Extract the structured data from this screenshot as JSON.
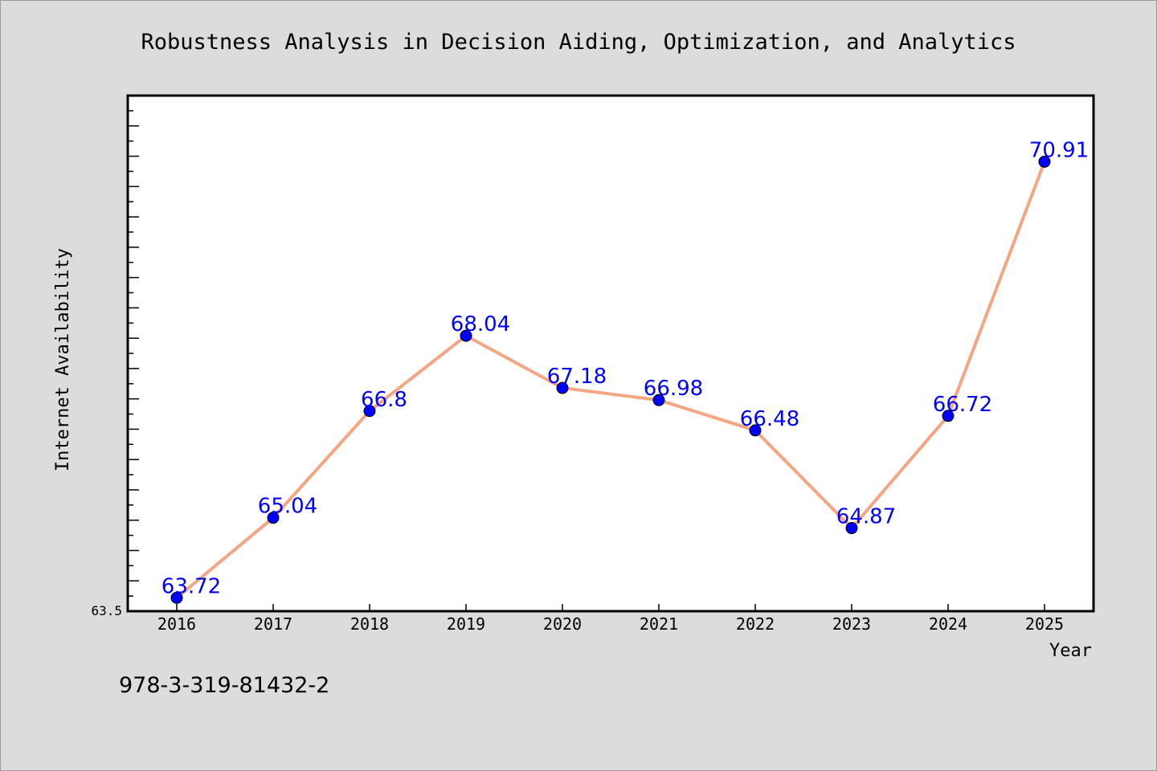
{
  "chart_data": {
    "type": "line",
    "title": "Robustness Analysis in Decision Aiding, Optimization, and Analytics",
    "xlabel": "Year",
    "ylabel": "Internet Availability",
    "categories": [
      "2016",
      "2017",
      "2018",
      "2019",
      "2020",
      "2021",
      "2022",
      "2023",
      "2024",
      "2025"
    ],
    "series": [
      {
        "values": [
          63.72,
          65.04,
          66.8,
          68.04,
          67.18,
          66.98,
          66.48,
          64.87,
          66.72,
          70.91
        ],
        "labels": [
          "63.72",
          "65.04",
          "66.8",
          "68.04",
          "67.18",
          "66.98",
          "66.48",
          "64.87",
          "66.72",
          "70.91"
        ]
      }
    ],
    "ylim": [
      63.5,
      72.0
    ],
    "y_tick_label": "63.5",
    "grid": false,
    "legend": "none",
    "line_color": "#f4a582",
    "marker_color": "#0000ff"
  },
  "footer": {
    "isbn": "978-3-319-81432-2"
  }
}
